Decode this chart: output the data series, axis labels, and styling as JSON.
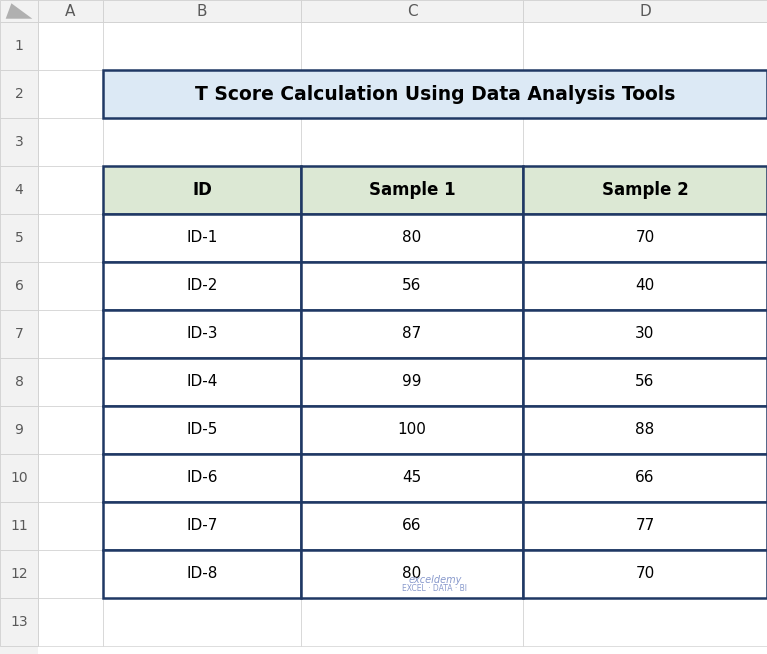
{
  "title": "T Score Calculation Using Data Analysis Tools",
  "headers": [
    "ID",
    "Sample 1",
    "Sample 2"
  ],
  "rows": [
    [
      "ID-1",
      "80",
      "70"
    ],
    [
      "ID-2",
      "56",
      "40"
    ],
    [
      "ID-3",
      "87",
      "30"
    ],
    [
      "ID-4",
      "99",
      "56"
    ],
    [
      "ID-5",
      "100",
      "88"
    ],
    [
      "ID-6",
      "45",
      "66"
    ],
    [
      "ID-7",
      "66",
      "77"
    ],
    [
      "ID-8",
      "80",
      "70"
    ]
  ],
  "col_labels": [
    "A",
    "B",
    "C",
    "D"
  ],
  "header_bg": "#dce8d4",
  "header_border": "#1f3864",
  "cell_bg": "#ffffff",
  "cell_border": "#1f3864",
  "title_bg": "#dce9f5",
  "title_border": "#1f3864",
  "excel_bg": "#f2f2f2",
  "excel_header_bg": "#f2f2f2",
  "grid_line_color": "#d0d0d0",
  "corner_color": "#e8e8e8",
  "text_color": "#000000",
  "row_col_label_color": "#595959",
  "title_font_size": 13.5,
  "header_font_size": 12,
  "cell_font_size": 11,
  "row_label_font_size": 10,
  "col_label_font_size": 11
}
